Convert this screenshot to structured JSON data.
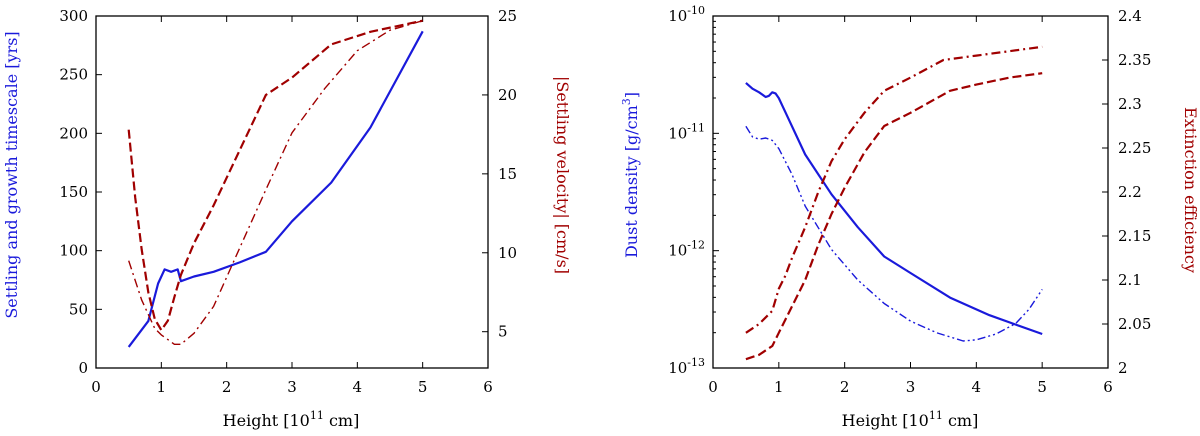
{
  "chart_data": [
    {
      "type": "line",
      "xlabel": "Height [10",
      "xlabel_exp": "11",
      "xlabel_unit": " cm]",
      "ylabel_left": "Settling and growth timescale [yrs]",
      "ylabel_right": "|Settling velocity| [cm/s]",
      "xlim": [
        0,
        6
      ],
      "ylim_left": [
        0,
        300
      ],
      "ylim_right": [
        2.7,
        25
      ],
      "xticks": [
        0,
        1,
        2,
        3,
        4,
        5,
        6
      ],
      "yticks_left": [
        0,
        50,
        100,
        150,
        200,
        250,
        300
      ],
      "yticks_right": [
        5,
        10,
        15,
        20,
        25
      ],
      "colors": {
        "left": "#1a1adb",
        "right": "#a00000"
      },
      "series": [
        {
          "axis": "left",
          "style": "solid",
          "x": [
            0.5,
            0.8,
            0.95,
            1.05,
            1.15,
            1.25,
            1.3,
            1.5,
            1.8,
            2.2,
            2.6,
            3.0,
            3.6,
            4.2,
            5.0
          ],
          "y": [
            18,
            40,
            72,
            84,
            82,
            84,
            74,
            78,
            82,
            90,
            99,
            125,
            158,
            205,
            287
          ]
        },
        {
          "axis": "right",
          "style": "dashed",
          "x": [
            0.5,
            0.6,
            0.7,
            0.8,
            0.9,
            1.0,
            1.1,
            1.2,
            1.3,
            1.5,
            1.8,
            2.2,
            2.6,
            3.0,
            3.6,
            4.2,
            5.0
          ],
          "y": [
            17.8,
            13.5,
            10.2,
            7.5,
            5.8,
            5.1,
            5.7,
            7.2,
            8.6,
            10.6,
            13.0,
            16.5,
            20.0,
            21.1,
            23.2,
            24.0,
            24.7
          ]
        },
        {
          "axis": "right",
          "style": "dashdot",
          "x": [
            0.5,
            0.7,
            0.9,
            1.0,
            1.1,
            1.2,
            1.3,
            1.5,
            1.8,
            2.2,
            2.6,
            3.0,
            3.5,
            4.0,
            4.5,
            5.0
          ],
          "y": [
            9.5,
            7.0,
            5.2,
            4.8,
            4.5,
            4.2,
            4.2,
            4.9,
            6.6,
            10.3,
            14.0,
            17.6,
            20.4,
            22.8,
            24.1,
            24.7
          ]
        }
      ]
    },
    {
      "type": "line",
      "xlabel": "Height [10",
      "xlabel_exp": "11",
      "xlabel_unit": " cm]",
      "ylabel_left": "Dust density [g/cm",
      "ylabel_left_exp": "3",
      "ylabel_left_unit": "]",
      "ylabel_right": "Extinction efficiency",
      "xlim": [
        0,
        6
      ],
      "ylim_left": [
        -13,
        -10
      ],
      "ylim_right": [
        2.0,
        2.4
      ],
      "xticks": [
        0,
        1,
        2,
        3,
        4,
        5,
        6
      ],
      "yticks_left": [
        {
          "base": "10",
          "exp": "-13",
          "value": -13
        },
        {
          "base": "10",
          "exp": "-12",
          "value": -12
        },
        {
          "base": "10",
          "exp": "-11",
          "value": -11
        },
        {
          "base": "10",
          "exp": "-10",
          "value": -10
        }
      ],
      "yticks_right": [
        "2",
        "2.05",
        "2.1",
        "2.15",
        "2.2",
        "2.25",
        "2.3",
        "2.35",
        "2.4"
      ],
      "yscale_left": "log",
      "colors": {
        "left": "#1a1adb",
        "right": "#a00000"
      },
      "series": [
        {
          "axis": "left",
          "style": "solid",
          "x": [
            0.5,
            0.6,
            0.7,
            0.8,
            0.85,
            0.9,
            0.95,
            1.0,
            1.05,
            1.1,
            1.2,
            1.4,
            1.8,
            2.2,
            2.6,
            3.0,
            3.6,
            4.2,
            4.6,
            5.0
          ],
          "y": [
            -10.57,
            -10.62,
            -10.65,
            -10.69,
            -10.68,
            -10.65,
            -10.66,
            -10.7,
            -10.76,
            -10.82,
            -10.94,
            -11.18,
            -11.52,
            -11.8,
            -12.05,
            -12.19,
            -12.4,
            -12.55,
            -12.63,
            -12.71
          ]
        },
        {
          "axis": "left",
          "style": "dashdotdot",
          "x": [
            0.5,
            0.6,
            0.7,
            0.8,
            0.9,
            1.0,
            1.2,
            1.4,
            1.8,
            2.2,
            2.6,
            3.0,
            3.4,
            3.8,
            4.0,
            4.3,
            4.6,
            4.8,
            5.0
          ],
          "y": [
            -10.94,
            -11.03,
            -11.05,
            -11.04,
            -11.06,
            -11.13,
            -11.35,
            -11.62,
            -11.99,
            -12.25,
            -12.45,
            -12.6,
            -12.7,
            -12.77,
            -12.76,
            -12.71,
            -12.62,
            -12.5,
            -12.33
          ]
        },
        {
          "axis": "right",
          "style": "dashdot",
          "x": [
            0.5,
            0.7,
            0.9,
            1.0,
            1.1,
            1.2,
            1.4,
            1.6,
            1.8,
            2.0,
            2.3,
            2.6,
            3.0,
            3.5,
            4.0,
            4.5,
            5.0
          ],
          "y": [
            2.04,
            2.05,
            2.065,
            2.09,
            2.105,
            2.125,
            2.16,
            2.2,
            2.235,
            2.26,
            2.29,
            2.315,
            2.33,
            2.35,
            2.355,
            2.36,
            2.365
          ]
        },
        {
          "axis": "right",
          "style": "dashed",
          "x": [
            0.5,
            0.7,
            0.9,
            1.0,
            1.1,
            1.2,
            1.4,
            1.6,
            1.8,
            2.0,
            2.3,
            2.6,
            3.0,
            3.6,
            4.0,
            4.5,
            5.0
          ],
          "y": [
            2.01,
            2.015,
            2.025,
            2.04,
            2.055,
            2.07,
            2.1,
            2.14,
            2.175,
            2.205,
            2.245,
            2.275,
            2.29,
            2.315,
            2.322,
            2.33,
            2.335
          ]
        }
      ]
    }
  ]
}
